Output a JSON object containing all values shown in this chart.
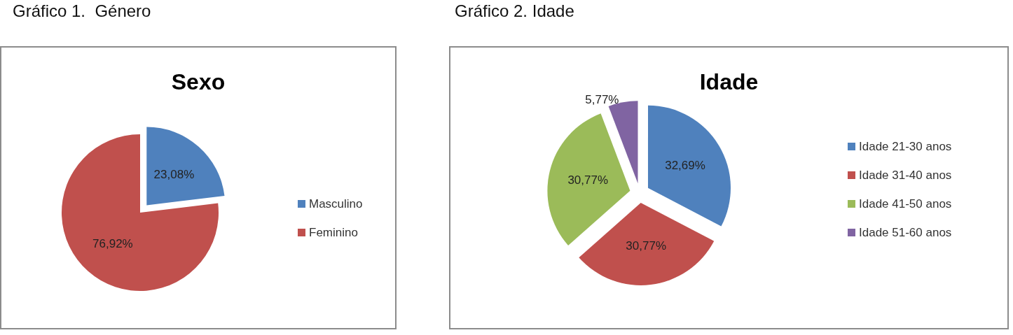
{
  "chart_data": [
    {
      "type": "pie",
      "title": "Sexo",
      "annotations": [
        "Gráfico 1.  Género"
      ],
      "categories": [
        "Masculino",
        "Feminino"
      ],
      "values": [
        23.08,
        76.92
      ],
      "colors": [
        "#4f81bd",
        "#c0504d"
      ],
      "value_labels": [
        "23,08%",
        "76,92%"
      ],
      "legend": "right"
    },
    {
      "type": "pie",
      "title": "Idade",
      "annotations": [
        "Gráfico 2. Idade"
      ],
      "categories": [
        "Idade 21-30 anos",
        "Idade 31-40 anos",
        "Idade 41-50 anos",
        "Idade 51-60 anos"
      ],
      "values": [
        32.69,
        30.77,
        30.77,
        5.77
      ],
      "colors": [
        "#4f81bd",
        "#c0504d",
        "#9bbb59",
        "#8064a2"
      ],
      "value_labels": [
        "32,69%",
        "30,77%",
        "30,77%",
        "5,77%"
      ],
      "legend": "right"
    }
  ]
}
